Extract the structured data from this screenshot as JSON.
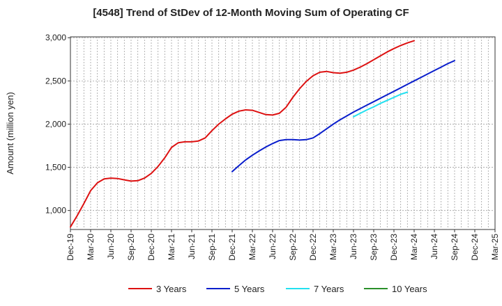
{
  "chart_data": {
    "type": "line",
    "title": "[4548]  Trend of StDev of 12-Month Moving Sum of Operating CF",
    "ylabel": "Amount (million yen)",
    "xlabel": "",
    "ylim": [
      780,
      3010
    ],
    "yticks": [
      1000,
      1500,
      2000,
      2500,
      3000
    ],
    "ytick_labels": [
      "1,000",
      "1,500",
      "2,000",
      "2,500",
      "3,000"
    ],
    "x_start": "Dec-19",
    "x_end": "Mar-25",
    "xtick_labels": [
      "Dec-19",
      "Mar-20",
      "Jun-20",
      "Sep-20",
      "Dec-20",
      "Mar-21",
      "Jun-21",
      "Sep-21",
      "Dec-21",
      "Mar-22",
      "Jun-22",
      "Sep-22",
      "Dec-22",
      "Mar-23",
      "Jun-23",
      "Sep-23",
      "Dec-23",
      "Mar-24",
      "Jun-24",
      "Sep-24",
      "Dec-24",
      "Mar-25"
    ],
    "grid": true,
    "legend_position": "bottom",
    "series": [
      {
        "name": "3 Years",
        "color": "#dd1111",
        "start": "Dec-19",
        "values": [
          810,
          940,
          1080,
          1230,
          1320,
          1365,
          1375,
          1370,
          1355,
          1340,
          1345,
          1375,
          1430,
          1510,
          1610,
          1730,
          1785,
          1795,
          1795,
          1805,
          1840,
          1925,
          2000,
          2060,
          2115,
          2150,
          2165,
          2160,
          2135,
          2110,
          2105,
          2125,
          2195,
          2310,
          2410,
          2495,
          2560,
          2600,
          2610,
          2595,
          2590,
          2600,
          2625,
          2660,
          2700,
          2745,
          2790,
          2835,
          2875,
          2910,
          2940,
          2965
        ]
      },
      {
        "name": "5 Years",
        "color": "#0a1ecc",
        "start": "Dec-21",
        "values": [
          1450,
          1520,
          1585,
          1640,
          1690,
          1735,
          1775,
          1810,
          1820,
          1820,
          1815,
          1820,
          1840,
          1890,
          1945,
          2000,
          2050,
          2095,
          2140,
          2180,
          2220,
          2260,
          2300,
          2340,
          2380,
          2420,
          2460,
          2500,
          2540,
          2580,
          2620,
          2660,
          2700,
          2735
        ]
      },
      {
        "name": "7 Years",
        "color": "#22e0f0",
        "start": "Jun-23",
        "values": [
          2085,
          2125,
          2165,
          2200,
          2240,
          2275,
          2310,
          2345,
          2370
        ]
      },
      {
        "name": "10 Years",
        "color": "#2a8f2a",
        "start": "",
        "values": []
      }
    ]
  }
}
